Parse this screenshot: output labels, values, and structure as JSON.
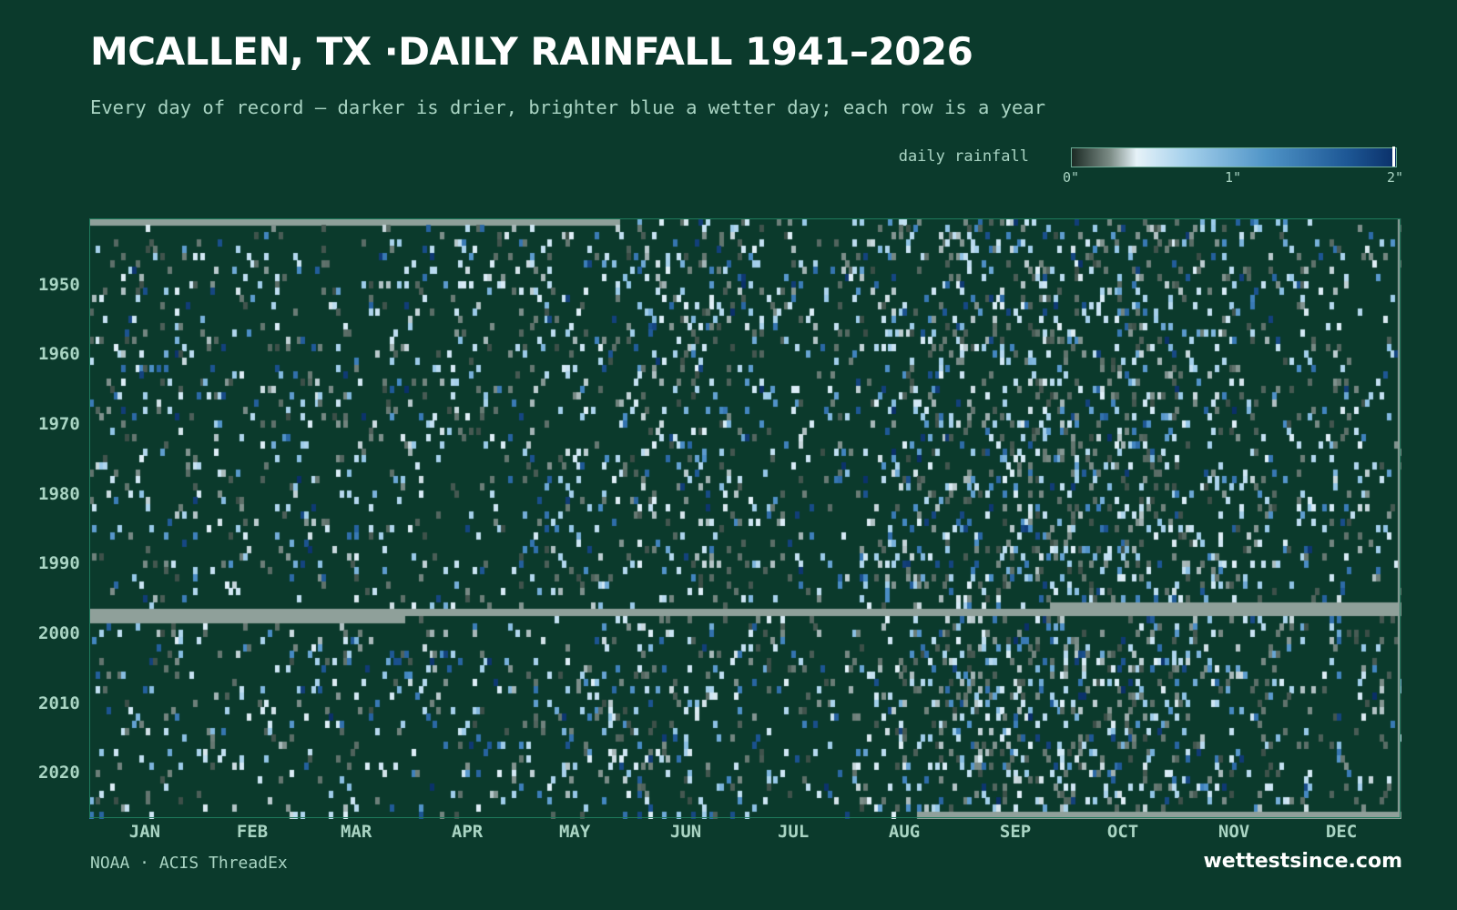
{
  "title": "MCALLEN, TX ·DAILY RAINFALL 1941–2026",
  "subtitle": "Every day of record — darker is drier, brighter blue a wetter day; each row is a year",
  "legend": {
    "label": "daily rainfall",
    "ticks": [
      "0\"",
      "1\"",
      "2\""
    ],
    "tick_values": [
      0,
      1,
      2
    ]
  },
  "footer": {
    "source": "NOAA · ACIS ThreadEx",
    "brand": "wettestsince.com"
  },
  "colors": {
    "background": "#0b3a2c",
    "missing": "#8fa09a",
    "frame": "#1f7a5c",
    "text_muted": "#a9d4c3",
    "dry_cell": "#0b3a2c",
    "scale_low": "#7e8e88",
    "scale_light": "#e6f2f8",
    "scale_mid": "#4f94c7",
    "scale_high": "#0a2f68"
  },
  "chart_data": {
    "type": "heatmap",
    "title": "MCALLEN, TX ·DAILY RAINFALL 1941–2026",
    "subtitle": "Every day of record — darker is drier, brighter blue a wetter day; each row is a year",
    "x_axis": {
      "months": [
        "JAN",
        "FEB",
        "MAR",
        "APR",
        "MAY",
        "JUN",
        "JUL",
        "AUG",
        "SEP",
        "OCT",
        "NOV",
        "DEC"
      ],
      "month_mid_day": [
        16,
        46,
        75,
        106,
        136,
        167,
        197,
        228,
        259,
        289,
        320,
        350
      ],
      "day_range": [
        1,
        366
      ]
    },
    "y_axis": {
      "year_range": [
        1941,
        2026
      ],
      "ticks": [
        1950,
        1960,
        1970,
        1980,
        1990,
        2000,
        2010,
        2020
      ],
      "tick_labels": [
        "1950",
        "1960",
        "1970",
        "1980",
        "1990",
        "2000",
        "2010",
        "2020"
      ]
    },
    "value_scale": {
      "min": 0,
      "max": 2,
      "unit": "in"
    },
    "missing_data": [
      {
        "year": 1941,
        "day_start": 1,
        "day_end": 148
      },
      {
        "year": 1996,
        "day_start": 269,
        "day_end": 366
      },
      {
        "year": 1997,
        "day_start": 1,
        "day_end": 366
      },
      {
        "year": 1998,
        "day_start": 1,
        "day_end": 88
      },
      {
        "year": 2026,
        "day_start": 232,
        "day_end": 366
      }
    ],
    "notable_wet_periods": [
      {
        "months": "AUG–OCT",
        "description": "wettest season, densest blue cells"
      },
      {
        "months": "MAY–JUN",
        "description": "secondary wet season"
      }
    ],
    "legend_position": "top-right",
    "grid": false
  }
}
